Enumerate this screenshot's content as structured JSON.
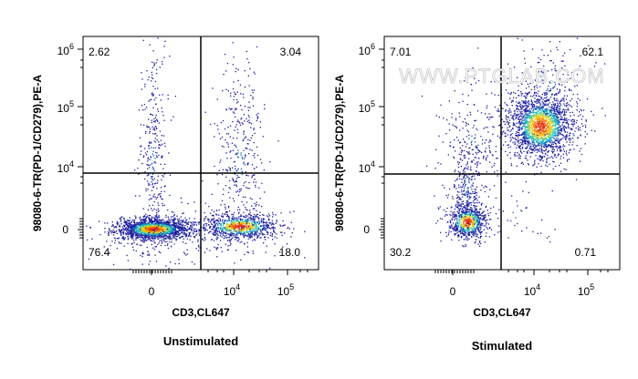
{
  "chart_data": [
    {
      "type": "scatter",
      "panel": "unstimulated",
      "title": "Unstimulated",
      "xlabel": "CD3,CL647",
      "ylabel": "98080-6-TR(PD-1/CD279),PE-A",
      "x_ticks": [
        {
          "base": "0",
          "exp": ""
        },
        {
          "base": "10",
          "exp": "4"
        },
        {
          "base": "10",
          "exp": "5"
        }
      ],
      "y_ticks": [
        {
          "base": "0",
          "exp": ""
        },
        {
          "base": "10",
          "exp": "4"
        },
        {
          "base": "10",
          "exp": "5"
        },
        {
          "base": "10",
          "exp": "6"
        }
      ],
      "scale": "biexponential",
      "gate": {
        "x": "3.2e3",
        "y": "7e3"
      },
      "quadrants": {
        "upper_left": "2.62",
        "upper_right": "3.04",
        "lower_left": "76.4",
        "lower_right": "18.0"
      },
      "populations": [
        {
          "name": "CD3- PD-1-",
          "center": {
            "x": "0",
            "y": "0"
          },
          "share_percent": 76.4
        },
        {
          "name": "CD3+ PD-1-",
          "center": {
            "x": "1e4",
            "y": "0"
          },
          "share_percent": 18.0
        },
        {
          "name": "CD3- PD-1+",
          "center": {
            "x": "0",
            "y": "1e5"
          },
          "share_percent": 2.62
        },
        {
          "name": "CD3+ PD-1+",
          "center": {
            "x": "1e4",
            "y": "1e5"
          },
          "share_percent": 3.04
        }
      ]
    },
    {
      "type": "scatter",
      "panel": "stimulated",
      "title": "Stimulated",
      "xlabel": "CD3,CL647",
      "ylabel": "98080-6-TR(PD-1/CD279),PE-A",
      "x_ticks": [
        {
          "base": "0",
          "exp": ""
        },
        {
          "base": "10",
          "exp": "4"
        },
        {
          "base": "10",
          "exp": "5"
        }
      ],
      "y_ticks": [
        {
          "base": "0",
          "exp": ""
        },
        {
          "base": "10",
          "exp": "4"
        },
        {
          "base": "10",
          "exp": "5"
        },
        {
          "base": "10",
          "exp": "6"
        }
      ],
      "scale": "biexponential",
      "gate": {
        "x": "3.2e3",
        "y": "7e3"
      },
      "quadrants": {
        "upper_left": "7.01",
        "upper_right": "62.1",
        "lower_left": "30.2",
        "lower_right": "0.71"
      },
      "populations": [
        {
          "name": "CD3+ PD-1+",
          "center": {
            "x": "1.5e4",
            "y": "5e4"
          },
          "share_percent": 62.1
        },
        {
          "name": "CD3- PD-1-",
          "center": {
            "x": "1e3",
            "y": "0"
          },
          "share_percent": 30.2
        },
        {
          "name": "CD3- PD-1+",
          "center": {
            "x": "0",
            "y": "1e5"
          },
          "share_percent": 7.01
        },
        {
          "name": "CD3+ PD-1-",
          "center": {
            "x": "1e4",
            "y": "0"
          },
          "share_percent": 0.71
        }
      ]
    }
  ],
  "watermark": "WWW.PTGLAB.COM",
  "colors": {
    "density_low": "#1a1aa0",
    "density_mid": "#14c8c8",
    "density_high": "#ffd000",
    "density_peak": "#e02010",
    "gate_line": "#000000",
    "frame": "#000000"
  }
}
